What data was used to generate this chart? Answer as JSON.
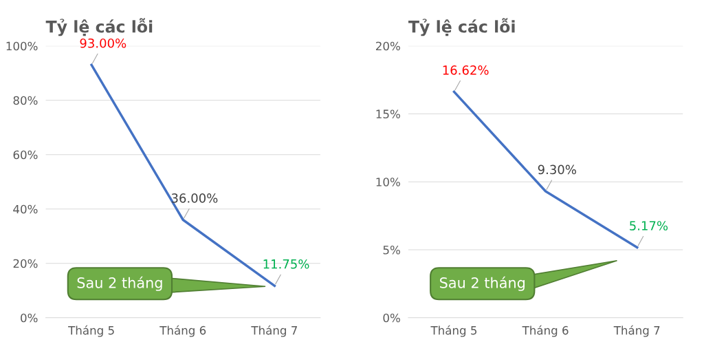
{
  "chart_data": [
    {
      "type": "line",
      "title": "Tỷ lệ các lỗi",
      "categories": [
        "Tháng 5",
        "Tháng 6",
        "Tháng 7"
      ],
      "series": [
        {
          "color": "#4472c4",
          "values": [
            93.0,
            36.0,
            11.75
          ],
          "value_labels": [
            "93.00%",
            "36.00%",
            "11.75%"
          ],
          "colors": [
            "#ff0000",
            "#404040",
            "#00b050"
          ]
        }
      ],
      "ylim": [
        0,
        100
      ],
      "yticks": [
        {
          "value": 0,
          "label": "0%"
        },
        {
          "value": 20,
          "label": "20%"
        },
        {
          "value": 40,
          "label": "40%"
        },
        {
          "value": 60,
          "label": "60%"
        },
        {
          "value": 80,
          "label": "80%"
        },
        {
          "value": 100,
          "label": "100%"
        }
      ],
      "grid": "y",
      "marker": "none",
      "line_style": "solid",
      "annotations": [
        "Sau 2 tháng"
      ]
    },
    {
      "type": "line",
      "title": "Tỷ lệ các lỗi",
      "categories": [
        "Tháng 5",
        "Tháng 6",
        "Tháng 7"
      ],
      "series": [
        {
          "color": "#4472c4",
          "values": [
            16.62,
            9.3,
            5.17
          ],
          "value_labels": [
            "16.62%",
            "9.30%",
            "5.17%"
          ],
          "colors": [
            "#ff0000",
            "#404040",
            "#00b050"
          ]
        }
      ],
      "ylim": [
        0,
        20
      ],
      "yticks": [
        {
          "value": 0,
          "label": "0%"
        },
        {
          "value": 5,
          "label": "5%"
        },
        {
          "value": 10,
          "label": "10%"
        },
        {
          "value": 15,
          "label": "15%"
        },
        {
          "value": 20,
          "label": "20%"
        }
      ],
      "grid": "y",
      "marker": "none",
      "line_style": "solid",
      "annotations": [
        "Sau 2 tháng"
      ]
    }
  ]
}
